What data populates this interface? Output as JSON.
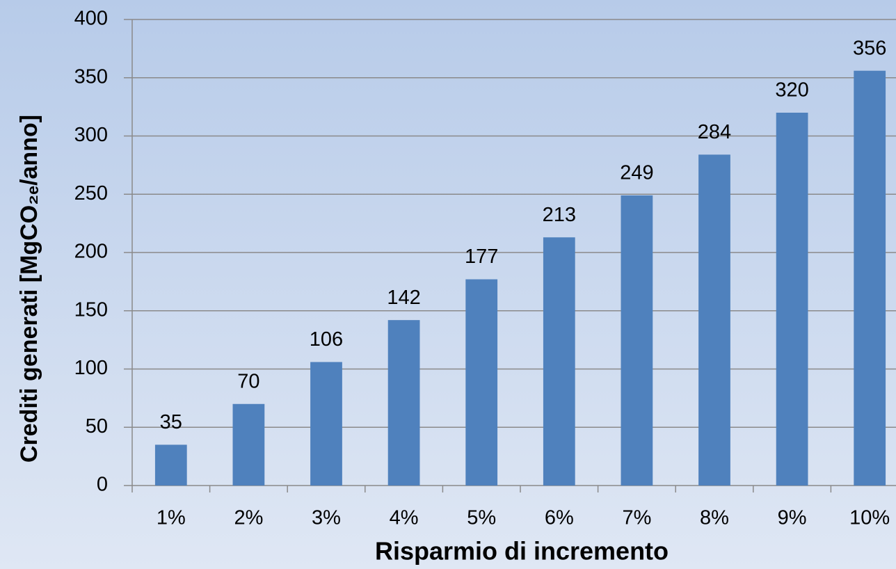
{
  "chart_data": {
    "type": "bar",
    "x_label": "Risparmio di incremento",
    "y_label": "Crediti generati [MgCO₂ₑ/anno]",
    "categories": [
      "1%",
      "2%",
      "3%",
      "4%",
      "5%",
      "6%",
      "7%",
      "8%",
      "9%",
      "10%"
    ],
    "values": [
      35,
      70,
      106,
      142,
      177,
      213,
      249,
      284,
      320,
      356
    ],
    "color": "#4f81bd",
    "ylim": [
      0,
      400
    ],
    "yticks": [
      0,
      50,
      100,
      150,
      200,
      250,
      300,
      350,
      400
    ],
    "grid": true,
    "show_value_labels": true
  }
}
